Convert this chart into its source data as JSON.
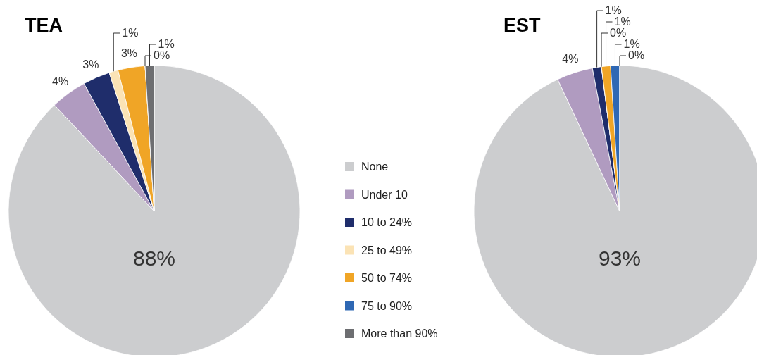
{
  "chart_data": [
    {
      "type": "pie",
      "title": "TEA",
      "categories": [
        "None",
        "Under 10",
        "10 to 24%",
        "25 to 49%",
        "50 to 74%",
        "75 to 90%",
        "More than 90%"
      ],
      "values": [
        88,
        4,
        3,
        1,
        3,
        0,
        1
      ],
      "value_labels": [
        "88%",
        "4%",
        "3%",
        "1%",
        "3%",
        "0%",
        "1%"
      ],
      "colors": [
        "#cccdcf",
        "#b09bc0",
        "#1f2d6b",
        "#fbe3b5",
        "#f0a526",
        "#2f68b4",
        "#6d6e71"
      ],
      "legend": "right"
    },
    {
      "type": "pie",
      "title": "EST",
      "categories": [
        null,
        null,
        null,
        null,
        null,
        null,
        null
      ],
      "values": [
        93,
        4,
        1,
        0,
        1,
        1,
        0
      ],
      "value_labels": [
        "93%",
        "4%",
        "1%",
        "0%",
        "1%",
        "1%",
        "0%"
      ],
      "colors": [
        "#cccdcf",
        "#b09bc0",
        "#1f2d6b",
        "#fbe3b5",
        "#f0a526",
        "#2f68b4",
        "#6d6e71"
      ]
    }
  ]
}
